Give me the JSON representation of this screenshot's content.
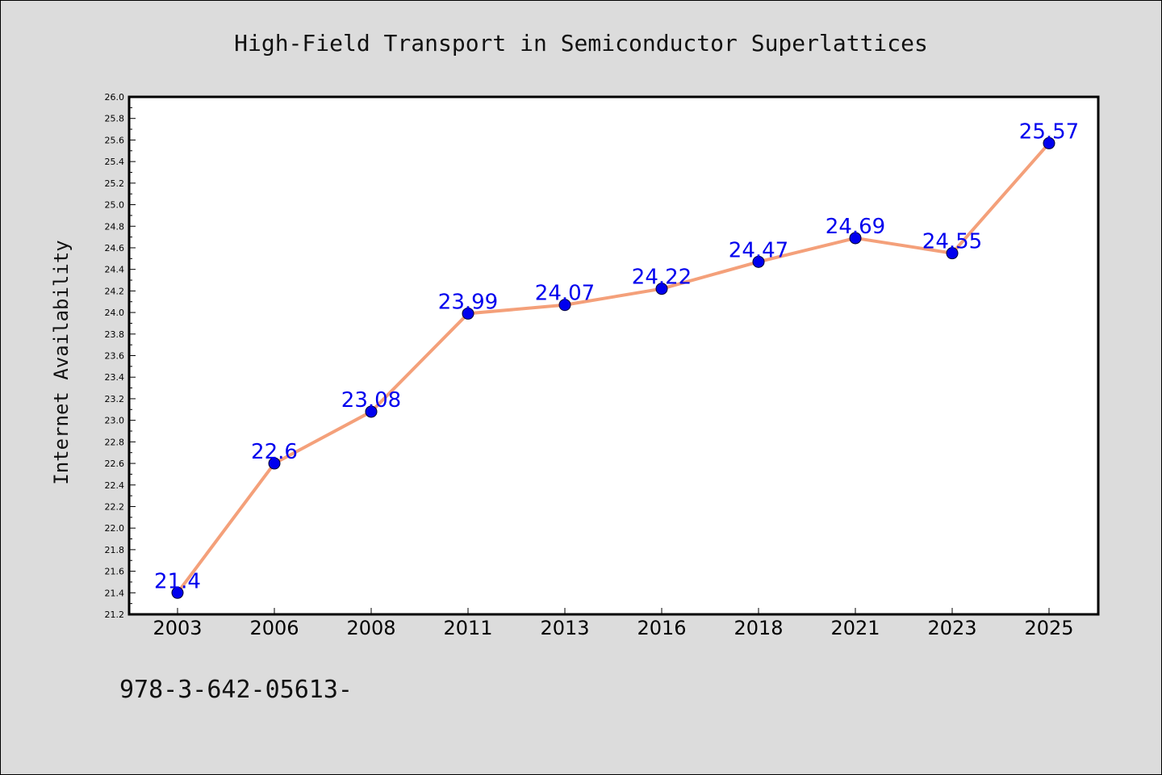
{
  "colors": {
    "background": "#dcdcdc",
    "plot_background": "#ffffff",
    "line": "#f4a07a",
    "marker_fill": "#0000ee",
    "marker_edge": "#000033",
    "label": "#0000ee"
  },
  "chart_data": {
    "type": "line",
    "title": "High-Field Transport in Semiconductor Superlattices",
    "xlabel": "",
    "ylabel": "Internet Availability",
    "categories": [
      "2003",
      "2006",
      "2008",
      "2011",
      "2013",
      "2016",
      "2018",
      "2021",
      "2023",
      "2025"
    ],
    "series": [
      {
        "values": [
          21.4,
          22.6,
          23.08,
          23.99,
          24.07,
          24.22,
          24.47,
          24.69,
          24.55,
          25.57
        ],
        "labels": [
          "21.4",
          "22.6",
          "23.08",
          "23.99",
          "24.07",
          "24.22",
          "24.47",
          "24.69",
          "24.55",
          "25.57"
        ]
      }
    ],
    "ylim": [
      21.2,
      26.0
    ],
    "yticks": [
      "21.2",
      "21.4",
      "21.6",
      "21.8",
      "22.0",
      "22.2",
      "22.4",
      "22.6",
      "22.8",
      "23.0",
      "23.2",
      "23.4",
      "23.6",
      "23.8",
      "24.0",
      "24.2",
      "24.4",
      "24.6",
      "24.8",
      "25.0",
      "25.2",
      "25.4",
      "25.6",
      "25.8",
      "26.0"
    ],
    "grid": false,
    "legend": "none"
  },
  "footer_text": "978-3-642-05613-"
}
